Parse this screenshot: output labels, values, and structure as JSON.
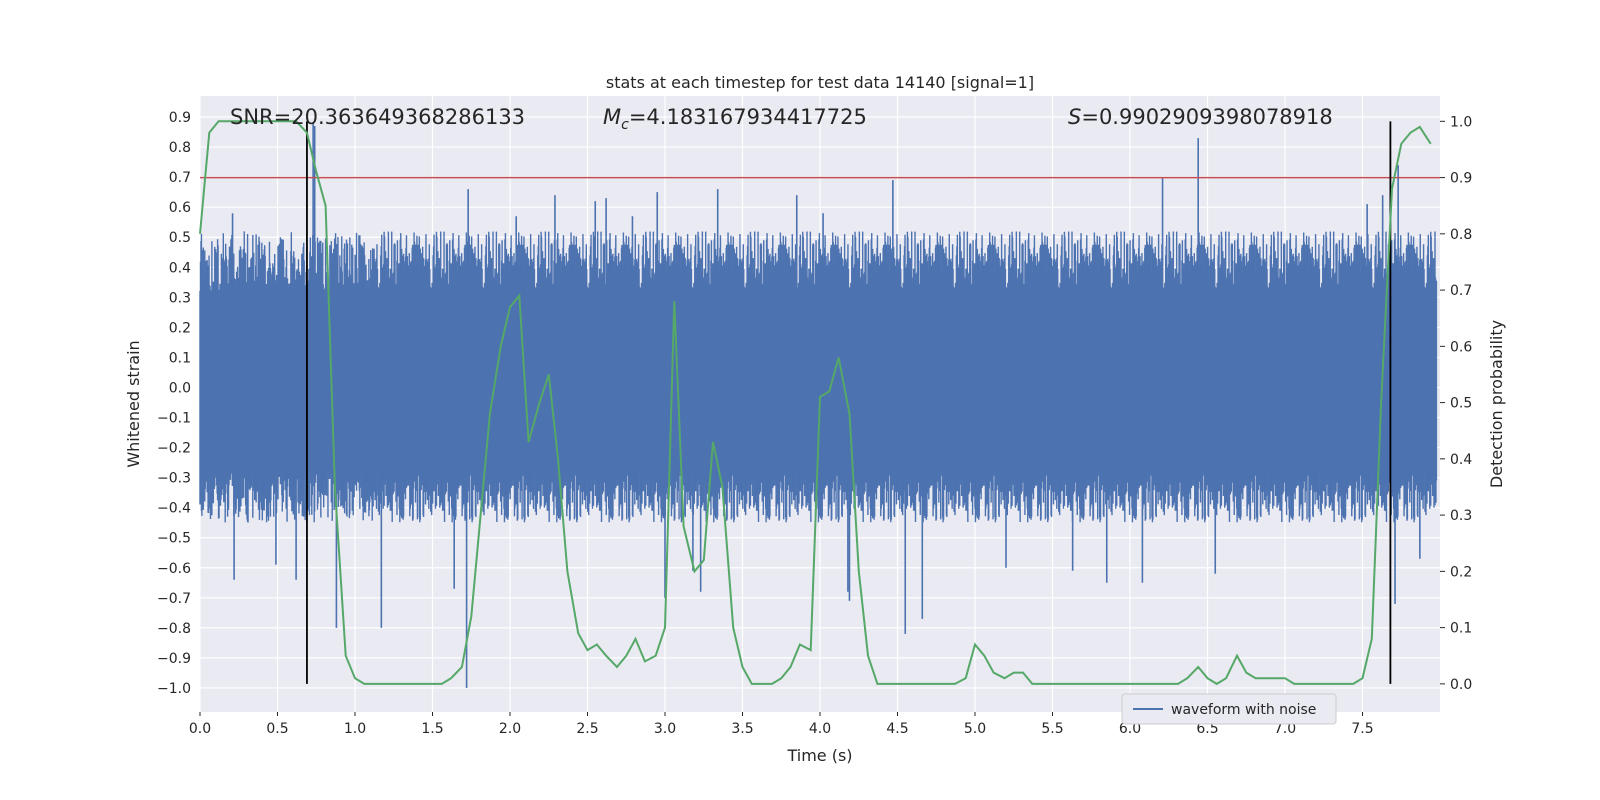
{
  "chart_data": {
    "type": "line",
    "title": "stats at each timestep for test data 14140 [signal=1]",
    "xlabel": "Time (s)",
    "ylabel_left": "Whitened strain",
    "ylabel_right": "Detection probability",
    "xlim": [
      0.0,
      8.0
    ],
    "ylim_left": [
      -1.08,
      0.97
    ],
    "ylim_right": [
      -0.05,
      1.045
    ],
    "x_ticks": [
      0.0,
      0.5,
      1.0,
      1.5,
      2.0,
      2.5,
      3.0,
      3.5,
      4.0,
      4.5,
      5.0,
      5.5,
      6.0,
      6.5,
      7.0,
      7.5
    ],
    "x_tick_labels": [
      "0.0",
      "0.5",
      "1.0",
      "1.5",
      "2.0",
      "2.5",
      "3.0",
      "3.5",
      "4.0",
      "4.5",
      "5.0",
      "5.5",
      "6.0",
      "6.5",
      "7.0",
      "7.5"
    ],
    "y_left_ticks": [
      0.9,
      0.8,
      0.7,
      0.6,
      0.5,
      0.4,
      0.3,
      0.2,
      0.1,
      0.0,
      -0.1,
      -0.2,
      -0.3,
      -0.4,
      -0.5,
      -0.6,
      -0.7,
      -0.8,
      -0.9,
      -1.0
    ],
    "y_left_tick_labels": [
      "0.9",
      "0.8",
      "0.7",
      "0.6",
      "0.5",
      "0.4",
      "0.3",
      "0.2",
      "0.1",
      "0.0",
      "−0.1",
      "−0.2",
      "−0.3",
      "−0.4",
      "−0.5",
      "−0.6",
      "−0.7",
      "−0.8",
      "−0.9",
      "−1.0"
    ],
    "y_right_ticks": [
      1.0,
      0.9,
      0.8,
      0.7,
      0.6,
      0.5,
      0.4,
      0.3,
      0.2,
      0.1,
      0.0
    ],
    "y_right_tick_labels": [
      "1.0",
      "0.9",
      "0.8",
      "0.7",
      "0.6",
      "0.5",
      "0.4",
      "0.3",
      "0.2",
      "0.1",
      "0.0"
    ],
    "grid": true,
    "annotations": {
      "snr": "SNR=20.363649368286133",
      "mc_symbol": "M",
      "mc_sub": "c",
      "mc_value": "=4.183167934417725",
      "s_symbol": "S",
      "s_value": "=0.9902909398078918"
    },
    "threshold": {
      "axis": "right",
      "value": 0.9,
      "color": "#c44e52"
    },
    "vertical_markers": {
      "x": [
        0.69,
        7.68
      ],
      "y_range_right": [
        0.0,
        1.0
      ],
      "color": "#000000"
    },
    "series": [
      {
        "name": "waveform with noise",
        "color": "#4c72b0",
        "axis": "left",
        "kind": "noise",
        "envelope": {
          "upper": [
            0.32,
            0.52
          ],
          "lower": [
            -0.28,
            -0.45
          ]
        },
        "peaks": [
          {
            "x": 0.73,
            "y": 0.88
          },
          {
            "x": 0.74,
            "y": 0.87
          },
          {
            "x": 0.21,
            "y": 0.58
          },
          {
            "x": 0.22,
            "y": -0.64
          },
          {
            "x": 0.88,
            "y": -0.8
          },
          {
            "x": 1.17,
            "y": -0.8
          },
          {
            "x": 1.64,
            "y": -0.67
          },
          {
            "x": 1.72,
            "y": -1.0
          },
          {
            "x": 1.73,
            "y": 0.66
          },
          {
            "x": 2.55,
            "y": 0.62
          },
          {
            "x": 2.62,
            "y": 0.63
          },
          {
            "x": 2.79,
            "y": 0.57
          },
          {
            "x": 2.95,
            "y": 0.65
          },
          {
            "x": 3.0,
            "y": -0.7
          },
          {
            "x": 3.34,
            "y": 0.66
          },
          {
            "x": 3.18,
            "y": -0.61
          },
          {
            "x": 3.23,
            "y": -0.68
          },
          {
            "x": 4.19,
            "y": -0.71
          },
          {
            "x": 4.18,
            "y": -0.68
          },
          {
            "x": 4.47,
            "y": 0.69
          },
          {
            "x": 4.55,
            "y": -0.82
          },
          {
            "x": 4.66,
            "y": -0.77
          },
          {
            "x": 6.21,
            "y": 0.7
          },
          {
            "x": 6.44,
            "y": 0.83
          },
          {
            "x": 7.53,
            "y": 0.61
          },
          {
            "x": 7.63,
            "y": 0.64
          },
          {
            "x": 7.73,
            "y": 0.74
          },
          {
            "x": 7.71,
            "y": -0.72
          },
          {
            "x": 7.87,
            "y": -0.57
          },
          {
            "x": 6.08,
            "y": -0.65
          },
          {
            "x": 5.85,
            "y": -0.65
          },
          {
            "x": 5.63,
            "y": -0.61
          },
          {
            "x": 6.55,
            "y": -0.62
          },
          {
            "x": 2.29,
            "y": 0.64
          },
          {
            "x": 2.04,
            "y": 0.57
          },
          {
            "x": 3.85,
            "y": 0.64
          },
          {
            "x": 4.02,
            "y": 0.58
          },
          {
            "x": 5.2,
            "y": -0.6
          },
          {
            "x": 0.62,
            "y": -0.64
          },
          {
            "x": 0.49,
            "y": -0.59
          }
        ]
      },
      {
        "name": "",
        "color": "#55a868",
        "axis": "right",
        "kind": "line",
        "x": [
          0.0,
          0.06,
          0.12,
          0.19,
          0.25,
          0.31,
          0.37,
          0.44,
          0.5,
          0.56,
          0.62,
          0.69,
          0.75,
          0.81,
          0.87,
          0.94,
          1.0,
          1.06,
          1.12,
          1.19,
          1.25,
          1.31,
          1.37,
          1.44,
          1.5,
          1.56,
          1.62,
          1.69,
          1.75,
          1.81,
          1.87,
          1.94,
          2.0,
          2.06,
          2.12,
          2.19,
          2.25,
          2.31,
          2.37,
          2.44,
          2.5,
          2.56,
          2.62,
          2.69,
          2.75,
          2.81,
          2.87,
          2.94,
          3.0,
          3.06,
          3.12,
          3.19,
          3.25,
          3.31,
          3.37,
          3.44,
          3.5,
          3.56,
          3.62,
          3.69,
          3.75,
          3.81,
          3.87,
          3.94,
          4.0,
          4.06,
          4.12,
          4.19,
          4.25,
          4.31,
          4.37,
          4.44,
          4.5,
          4.56,
          4.62,
          4.69,
          4.75,
          4.81,
          4.87,
          4.94,
          5.0,
          5.06,
          5.12,
          5.19,
          5.25,
          5.31,
          5.37,
          5.44,
          5.5,
          5.56,
          5.62,
          5.69,
          5.75,
          5.81,
          5.87,
          5.94,
          6.0,
          6.06,
          6.12,
          6.19,
          6.25,
          6.31,
          6.37,
          6.44,
          6.5,
          6.56,
          6.62,
          6.69,
          6.75,
          6.81,
          6.87,
          6.94,
          7.0,
          7.06,
          7.12,
          7.19,
          7.25,
          7.31,
          7.37,
          7.44,
          7.5,
          7.56,
          7.62,
          7.69,
          7.75,
          7.81,
          7.87,
          7.94
        ],
        "values": [
          0.8,
          0.98,
          1.0,
          1.0,
          1.0,
          1.0,
          1.0,
          1.0,
          1.0,
          1.0,
          1.0,
          0.98,
          0.91,
          0.85,
          0.35,
          0.05,
          0.01,
          0.0,
          0.0,
          0.0,
          0.0,
          0.0,
          0.0,
          0.0,
          0.0,
          0.0,
          0.01,
          0.03,
          0.12,
          0.3,
          0.48,
          0.6,
          0.67,
          0.69,
          0.43,
          0.5,
          0.55,
          0.4,
          0.2,
          0.09,
          0.06,
          0.07,
          0.05,
          0.03,
          0.05,
          0.08,
          0.04,
          0.05,
          0.1,
          0.68,
          0.28,
          0.2,
          0.22,
          0.43,
          0.35,
          0.1,
          0.03,
          0.0,
          0.0,
          0.0,
          0.01,
          0.03,
          0.07,
          0.06,
          0.51,
          0.52,
          0.58,
          0.48,
          0.2,
          0.05,
          0.0,
          0.0,
          0.0,
          0.0,
          0.0,
          0.0,
          0.0,
          0.0,
          0.0,
          0.01,
          0.07,
          0.05,
          0.02,
          0.01,
          0.02,
          0.02,
          0.0,
          0.0,
          0.0,
          0.0,
          0.0,
          0.0,
          0.0,
          0.0,
          0.0,
          0.0,
          0.0,
          0.0,
          0.0,
          0.0,
          0.0,
          0.0,
          0.01,
          0.03,
          0.01,
          0.0,
          0.01,
          0.05,
          0.02,
          0.01,
          0.01,
          0.01,
          0.01,
          0.0,
          0.0,
          0.0,
          0.0,
          0.0,
          0.0,
          0.0,
          0.01,
          0.08,
          0.5,
          0.88,
          0.96,
          0.98,
          0.99,
          0.96
        ]
      }
    ],
    "legend": {
      "placement": "lower-center-right",
      "entries": [
        "waveform with noise"
      ]
    }
  }
}
